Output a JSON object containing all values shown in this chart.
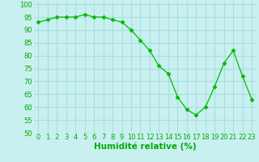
{
  "x": [
    0,
    1,
    2,
    3,
    4,
    5,
    6,
    7,
    8,
    9,
    10,
    11,
    12,
    13,
    14,
    15,
    16,
    17,
    18,
    19,
    20,
    21,
    22,
    23
  ],
  "y": [
    93,
    94,
    95,
    95,
    95,
    96,
    95,
    95,
    94,
    93,
    90,
    86,
    82,
    76,
    73,
    64,
    59,
    57,
    60,
    68,
    77,
    82,
    72,
    63
  ],
  "line_color": "#00bb00",
  "marker": "D",
  "marker_size": 2.5,
  "background_color": "#c8f0f0",
  "grid_color": "#aadddd",
  "xlabel": "Humidité relative (%)",
  "xlabel_color": "#00aa00",
  "xlabel_fontsize": 7.5,
  "tick_color": "#00aa00",
  "tick_fontsize": 6,
  "ylim": [
    50,
    101
  ],
  "xlim": [
    -0.5,
    23.5
  ],
  "yticks": [
    50,
    55,
    60,
    65,
    70,
    75,
    80,
    85,
    90,
    95,
    100
  ],
  "xticks": [
    0,
    1,
    2,
    3,
    4,
    5,
    6,
    7,
    8,
    9,
    10,
    11,
    12,
    13,
    14,
    15,
    16,
    17,
    18,
    19,
    20,
    21,
    22,
    23
  ]
}
